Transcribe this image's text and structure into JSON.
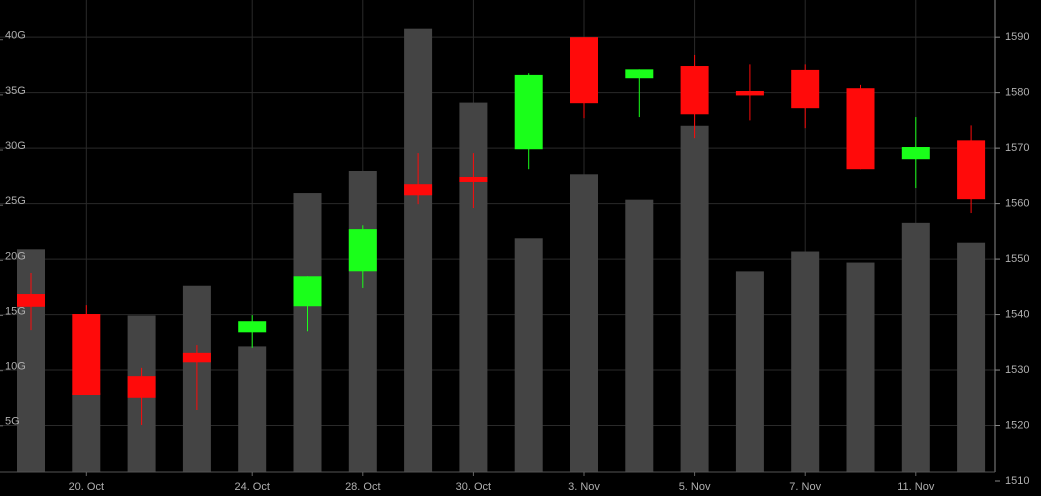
{
  "chart_data": {
    "type": "candlestick",
    "categories": [
      null,
      "20. Oct",
      null,
      null,
      "24. Oct",
      null,
      "28. Oct",
      null,
      "30. Oct",
      null,
      "3. Nov",
      null,
      "5. Nov",
      null,
      "7. Nov",
      null,
      "11. Nov",
      null
    ],
    "open": [
      1543.7,
      1540.1,
      1528.9,
      1533.1,
      1536.8,
      1541.5,
      1547.8,
      1563.5,
      1564.8,
      1569.8,
      1590.0,
      1582.6,
      1584.8,
      1580.3,
      1584.1,
      1580.8,
      1568.0,
      1571.4
    ],
    "high": [
      1547.5,
      1541.7,
      1530.4,
      1534.5,
      1539.9,
      1546.9,
      1556.1,
      1569.1,
      1569.1,
      1583.5,
      1590.0,
      1584.2,
      1586.8,
      1585.1,
      1585.1,
      1581.4,
      1575.6,
      1574.1
    ],
    "low": [
      1537.2,
      1525.5,
      1520.1,
      1522.8,
      1534.0,
      1537.0,
      1544.8,
      1559.9,
      1559.2,
      1566.2,
      1575.4,
      1575.6,
      1571.8,
      1575.0,
      1573.6,
      1566.2,
      1562.8,
      1558.3
    ],
    "close": [
      1541.4,
      1525.5,
      1525.0,
      1531.4,
      1538.8,
      1546.9,
      1555.4,
      1561.5,
      1563.9,
      1583.2,
      1578.1,
      1584.2,
      1576.1,
      1579.5,
      1577.2,
      1566.2,
      1570.2,
      1560.8
    ],
    "volume": [
      21.0,
      8.0,
      15.0,
      17.7,
      12.2,
      26.1,
      28.1,
      41.0,
      34.3,
      22.0,
      27.8,
      25.5,
      32.2,
      19.0,
      20.8,
      19.8,
      23.4,
      21.6
    ],
    "up_color": "#1aff1a",
    "down_color": "#ff0a0a",
    "volume_color": "#444444",
    "ylim": [
      1510,
      1596.7
    ],
    "yticks": [
      1510,
      1520,
      1530,
      1540,
      1550,
      1560,
      1570,
      1580,
      1590
    ],
    "y2lim": [
      0,
      43.6
    ],
    "y2ticks": [
      {
        "value": 5,
        "label": "5G"
      },
      {
        "value": 10,
        "label": "10G"
      },
      {
        "value": 15,
        "label": "15G"
      },
      {
        "value": 20,
        "label": "20G"
      },
      {
        "value": 25,
        "label": "25G"
      },
      {
        "value": 30,
        "label": "30G"
      },
      {
        "value": 35,
        "label": "35G"
      },
      {
        "value": 40,
        "label": "40G"
      }
    ],
    "grid": true
  }
}
